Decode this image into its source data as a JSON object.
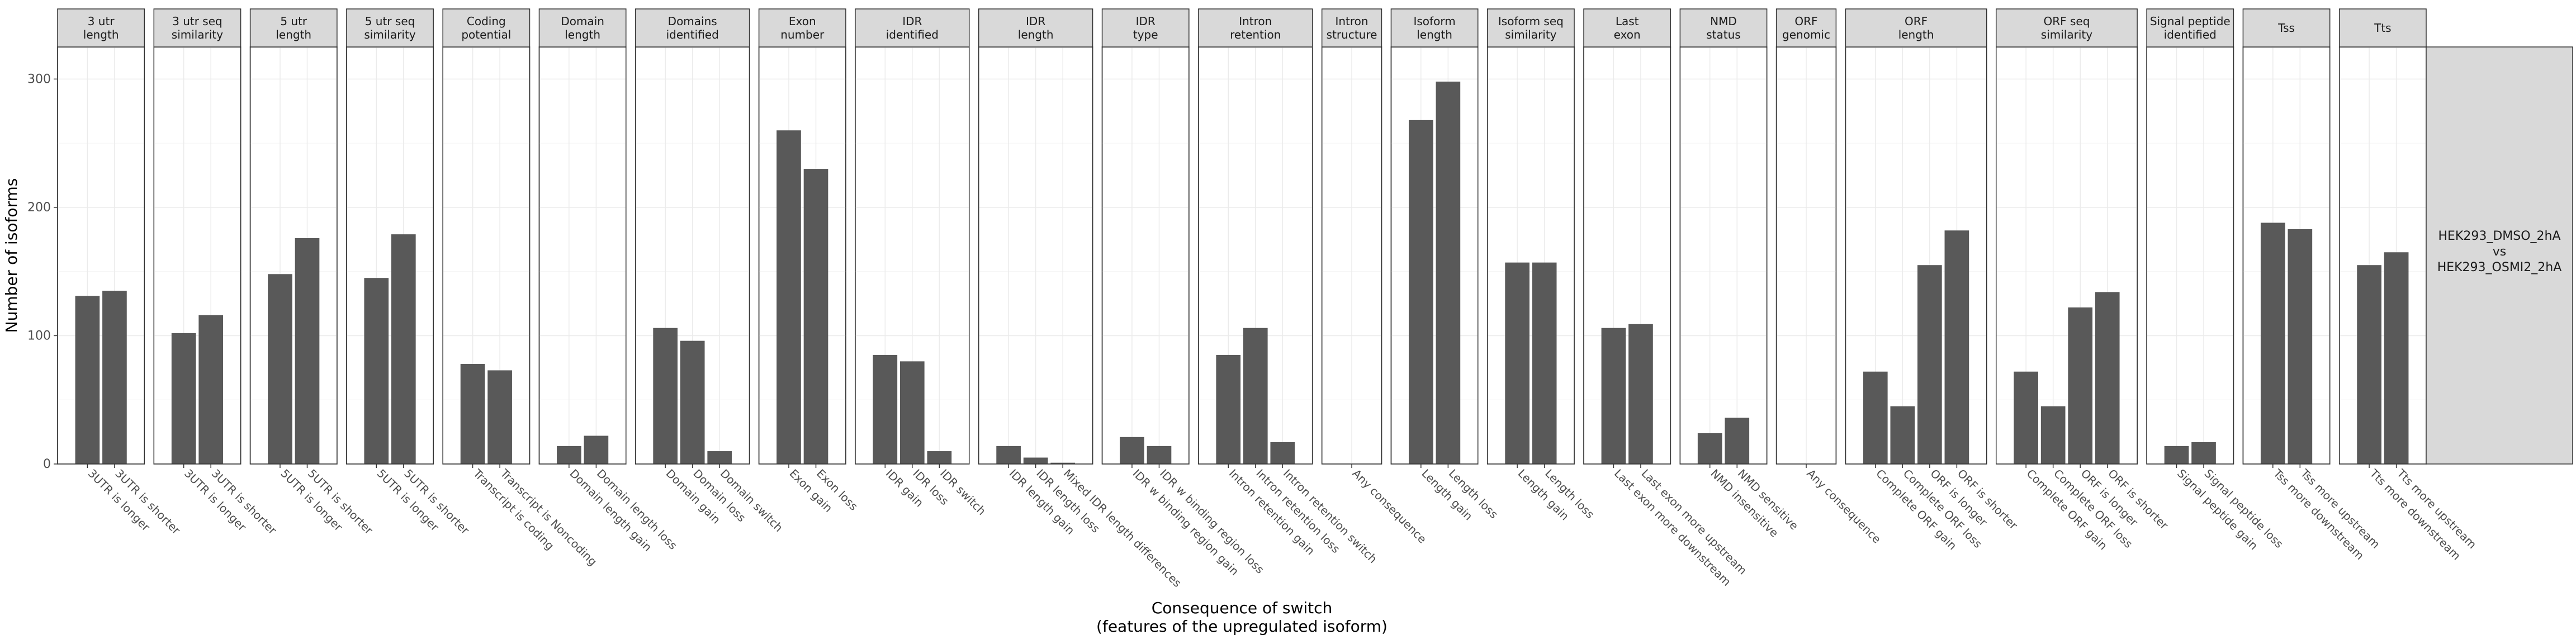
{
  "chart_data": {
    "type": "bar",
    "xlabel": [
      "Consequence of switch",
      "(features of the upregulated isoform)"
    ],
    "ylabel": "Number of isoforms",
    "ylim": [
      0,
      325
    ],
    "yticks": [
      0,
      100,
      200,
      300
    ],
    "grid": true,
    "facet_row_label": [
      "HEK293_DMSO_2hA",
      "vs",
      "HEK293_OSMI2_2hA"
    ],
    "facets": [
      {
        "strip": [
          "3 utr",
          "length"
        ],
        "categories": [
          "3UTR is longer",
          "3UTR is shorter"
        ],
        "values": [
          131,
          135
        ]
      },
      {
        "strip": [
          "3 utr seq",
          "similarity"
        ],
        "categories": [
          "3UTR is longer",
          "3UTR is shorter"
        ],
        "values": [
          102,
          116
        ]
      },
      {
        "strip": [
          "5 utr",
          "length"
        ],
        "categories": [
          "5UTR is longer",
          "5UTR is shorter"
        ],
        "values": [
          148,
          176
        ]
      },
      {
        "strip": [
          "5 utr seq",
          "similarity"
        ],
        "categories": [
          "5UTR is longer",
          "5UTR is shorter"
        ],
        "values": [
          145,
          179
        ]
      },
      {
        "strip": [
          "Coding",
          "potential"
        ],
        "categories": [
          "Transcript is coding",
          "Transcript is Noncoding"
        ],
        "values": [
          78,
          73
        ]
      },
      {
        "strip": [
          "Domain",
          "length"
        ],
        "categories": [
          "Domain length gain",
          "Domain length loss"
        ],
        "values": [
          14,
          22
        ]
      },
      {
        "strip": [
          "Domains",
          "identified"
        ],
        "categories": [
          "Domain gain",
          "Domain loss",
          "Domain switch"
        ],
        "values": [
          106,
          96,
          10
        ]
      },
      {
        "strip": [
          "Exon",
          "number"
        ],
        "categories": [
          "Exon gain",
          "Exon loss"
        ],
        "values": [
          260,
          230
        ]
      },
      {
        "strip": [
          "IDR",
          "identified"
        ],
        "categories": [
          "IDR gain",
          "IDR loss",
          "IDR switch"
        ],
        "values": [
          85,
          80,
          10
        ]
      },
      {
        "strip": [
          "IDR",
          "length"
        ],
        "categories": [
          "IDR length gain",
          "IDR length loss",
          "Mixed IDR length differences"
        ],
        "values": [
          14,
          5,
          1
        ]
      },
      {
        "strip": [
          "IDR",
          "type"
        ],
        "categories": [
          "IDR w binding region gain",
          "IDR w binding region loss"
        ],
        "values": [
          21,
          14
        ]
      },
      {
        "strip": [
          "Intron",
          "retention"
        ],
        "categories": [
          "Intron retention gain",
          "Intron retention loss",
          "Intron retention switch"
        ],
        "values": [
          85,
          106,
          17
        ]
      },
      {
        "strip": [
          "Intron",
          "structure"
        ],
        "categories": [
          "Any consequence"
        ],
        "values": [
          0
        ]
      },
      {
        "strip": [
          "Isoform",
          "length"
        ],
        "categories": [
          "Length gain",
          "Length loss"
        ],
        "values": [
          268,
          298
        ]
      },
      {
        "strip": [
          "Isoform seq",
          "similarity"
        ],
        "categories": [
          "Length gain",
          "Length loss"
        ],
        "values": [
          157,
          157
        ]
      },
      {
        "strip": [
          "Last",
          "exon"
        ],
        "categories": [
          "Last exon more downstream",
          "Last exon more upstream"
        ],
        "values": [
          106,
          109
        ]
      },
      {
        "strip": [
          "NMD",
          "status"
        ],
        "categories": [
          "NMD insensitive",
          "NMD sensitive"
        ],
        "values": [
          24,
          36
        ]
      },
      {
        "strip": [
          "ORF",
          "genomic"
        ],
        "categories": [
          "Any consequence"
        ],
        "values": [
          0
        ]
      },
      {
        "strip": [
          "ORF",
          "length"
        ],
        "categories": [
          "Complete ORF gain",
          "Complete ORF loss",
          "ORF is longer",
          "ORF is shorter"
        ],
        "values": [
          72,
          45,
          155,
          182
        ]
      },
      {
        "strip": [
          "ORF seq",
          "similarity"
        ],
        "categories": [
          "Complete ORF gain",
          "Complete ORF loss",
          "ORF is longer",
          "ORF is shorter"
        ],
        "values": [
          72,
          45,
          122,
          134
        ]
      },
      {
        "strip": [
          "Signal peptide",
          "identified"
        ],
        "categories": [
          "Signal peptide gain",
          "Signal peptide loss"
        ],
        "values": [
          14,
          17
        ]
      },
      {
        "strip": [
          "Tss"
        ],
        "categories": [
          "Tss more downstream",
          "Tss more upstream"
        ],
        "values": [
          188,
          183
        ]
      },
      {
        "strip": [
          "Tts"
        ],
        "categories": [
          "Tts more downstream",
          "Tts more upstream"
        ],
        "values": [
          155,
          165
        ]
      }
    ]
  }
}
